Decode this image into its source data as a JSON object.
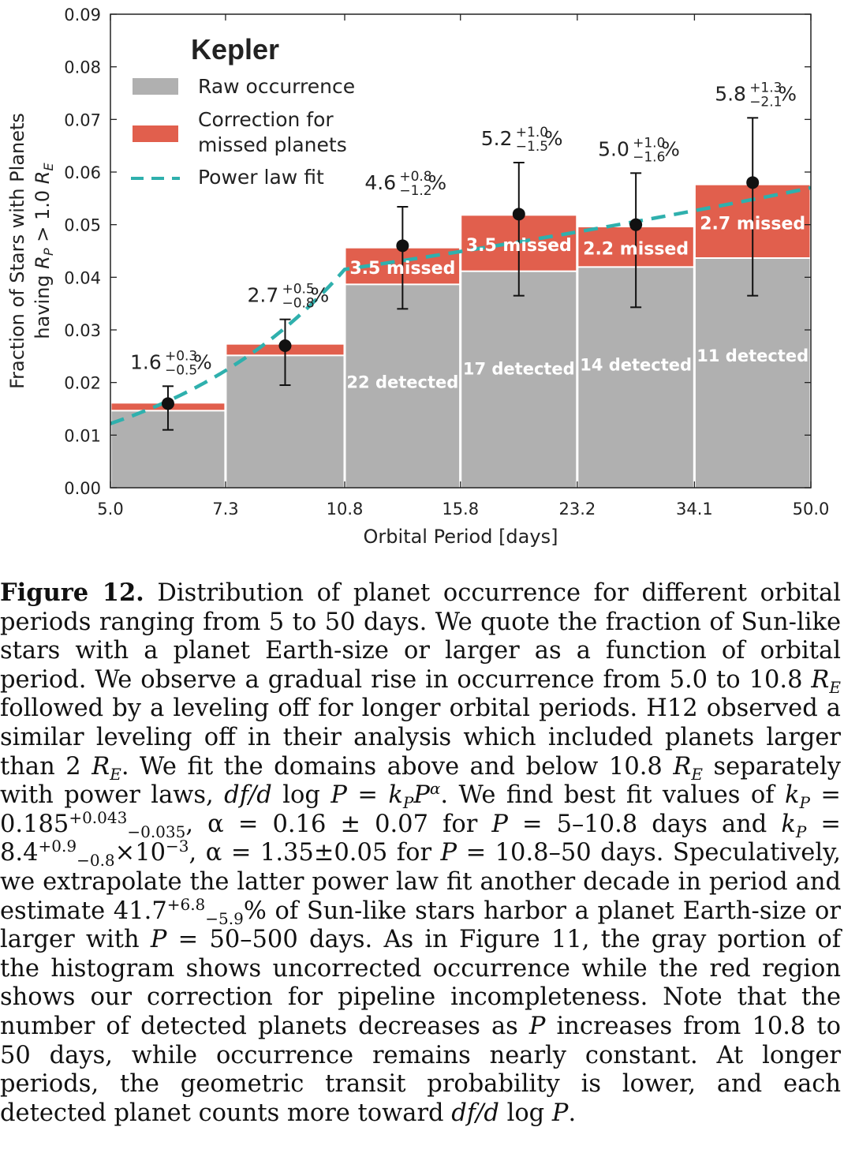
{
  "chart_data": {
    "type": "bar",
    "title": "Kepler",
    "xlabel": "Orbital Period [days]",
    "ylabel_line1": "Fraction of Stars with Planets",
    "ylabel_line2_prefix": "having ",
    "ylabel_line2_var": "R",
    "ylabel_line2_sub": "P",
    "ylabel_line2_mid": " > 1.0 ",
    "ylabel_line2_var2": "R",
    "ylabel_line2_sub2": "E",
    "ylim": [
      0.0,
      0.09
    ],
    "x_scale": "log",
    "bin_edges": [
      5.0,
      7.3,
      10.8,
      15.8,
      23.2,
      34.1,
      50.0
    ],
    "x_tick_labels": [
      "5.0",
      "7.3",
      "10.8",
      "15.8",
      "23.2",
      "34.1",
      "50.0"
    ],
    "y_ticks": [
      0.0,
      0.01,
      0.02,
      0.03,
      0.04,
      0.05,
      0.06,
      0.07,
      0.08,
      0.09
    ],
    "y_tick_labels": [
      "0.00",
      "0.01",
      "0.02",
      "0.03",
      "0.04",
      "0.05",
      "0.06",
      "0.07",
      "0.08",
      "0.09"
    ],
    "series": [
      {
        "name": "Raw occurrence",
        "color": "#b0b0b0",
        "values": [
          0.0145,
          0.025,
          0.0385,
          0.041,
          0.0418,
          0.0435
        ]
      },
      {
        "name": "Correction for missed planets",
        "color": "#e15f4d",
        "values": [
          0.0015,
          0.0022,
          0.007,
          0.0107,
          0.0077,
          0.014
        ]
      }
    ],
    "totals": [
      0.016,
      0.027,
      0.046,
      0.052,
      0.05,
      0.058
    ],
    "error_low": [
      0.011,
      0.0195,
      0.034,
      0.0365,
      0.0343,
      0.0365
    ],
    "error_high": [
      0.0193,
      0.032,
      0.0534,
      0.0618,
      0.0598,
      0.0703
    ],
    "value_labels": [
      {
        "main": "1.6",
        "sup": "+0.3",
        "sub": "−0.5",
        "suffix": "%"
      },
      {
        "main": "2.7",
        "sup": "+0.5",
        "sub": "−0.8",
        "suffix": "%"
      },
      {
        "main": "4.6",
        "sup": "+0.8",
        "sub": "−1.2",
        "suffix": "%"
      },
      {
        "main": "5.2",
        "sup": "+1.0",
        "sub": "−1.5",
        "suffix": "%"
      },
      {
        "main": "5.0",
        "sup": "+1.0",
        "sub": "−1.6",
        "suffix": "%"
      },
      {
        "main": "5.8",
        "sup": "+1.3",
        "sub": "−2.1",
        "suffix": "%"
      }
    ],
    "detected_labels": [
      "",
      "",
      "22 detected",
      "17 detected",
      "14 detected",
      "11 detected"
    ],
    "missed_labels": [
      "",
      "",
      "3.5 missed",
      "3.5 missed",
      "2.2 missed",
      "2.7 missed"
    ],
    "power_law_fit": {
      "name": "Power law fit",
      "color": "#2fb0ad",
      "x": [
        5.0,
        10.8,
        50.0
      ],
      "y": [
        0.0122,
        0.0415,
        0.057
      ]
    },
    "legend": [
      {
        "label": "Raw occurrence",
        "kind": "patch",
        "color": "#b0b0b0"
      },
      {
        "label_line1": "Correction for",
        "label_line2": "missed planets",
        "kind": "patch",
        "color": "#e15f4d"
      },
      {
        "label": "Power law fit",
        "kind": "dashed-line",
        "color": "#2fb0ad"
      }
    ],
    "legend_placement": "top-left",
    "grid": false
  },
  "caption": {
    "label": "Figure 12.",
    "s1": " Distribution of planet occurrence for different orbital periods ranging from 5 to 50 days. We quote the fraction of Sun-like stars with a planet Earth-size or larger as a function of orbital period. We observe a gradual rise in occurrence from 5.0 to 10.8 ",
    "re": "R",
    "re_sub": "E",
    "s2": " followed by a leveling off for longer orbital periods. H12 observed a similar leveling off in their analysis which included planets larger than 2 ",
    "s3": ". We fit the domains above and below 10.8 ",
    "s4": " separately with power laws, ",
    "powerlaw_lhs": "df/d",
    "powerlaw_log": " log ",
    "powerlaw_eq": "P = k",
    "powerlaw_sub": "P",
    "powerlaw_rhs": "P",
    "powerlaw_exp": "α",
    "s5": ". We find best fit values of ",
    "kp": "k",
    "kp_sub": "P",
    "s6": " = 0.185",
    "kp1_sup": "+0.043",
    "kp1_sub": "−0.035",
    "s7": ", α = 0.16 ± 0.07 for ",
    "p": "P",
    "s8": " = 5–10.8 days and ",
    "s9": " = 8.4",
    "kp2_sup": "+0.9",
    "kp2_sub": "−0.8",
    "s10": "×10",
    "s10_sup": "−3",
    "s11": ", α = 1.35±0.05 for ",
    "s12": " = 10.8–50 days. Speculatively, we extrapolate the latter power law fit another decade in period and estimate 41.7",
    "est_sup": "+6.8",
    "est_sub": "−5.9",
    "s13": "% of Sun-like stars harbor a planet Earth-size or larger with ",
    "s14": " = 50–500 days. As in Figure 11, the gray portion of the histogram shows uncorrected occurrence while the red region shows our correction for pipeline incompleteness. Note that the number of detected planets decreases as ",
    "s15": " increases from 10.8 to 50 days, while occurrence remains nearly constant. At longer periods, the geometric transit probability is lower, and each detected planet counts more toward ",
    "s16": "."
  }
}
